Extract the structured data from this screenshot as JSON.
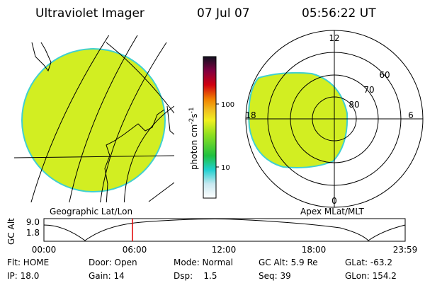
{
  "header": {
    "title": "Ultraviolet Imager",
    "date": "07 Jul 07",
    "time": "05:56:22 UT"
  },
  "geographic_panel": {
    "label": "Geographic Lat/Lon"
  },
  "polar_panel": {
    "label": "Apex MLat/MLT",
    "mlt_labels": [
      "12",
      "18",
      "6",
      "0"
    ],
    "lat_labels": [
      "60",
      "70",
      "80"
    ]
  },
  "colorbar": {
    "unit": [
      "photon cm",
      "-2",
      "s",
      "-1"
    ],
    "tick_labels": [
      "100",
      "10"
    ]
  },
  "altitude_strip": {
    "label": "GC Alt",
    "y_labels": [
      "9.0",
      "1.8"
    ],
    "x_labels": [
      "00:00",
      "06:00",
      "12:00",
      "18:00",
      "23:59"
    ]
  },
  "footer": {
    "rows": [
      [
        "Flt: HOME",
        "Door: Open",
        "Mode: Normal",
        "GC Alt: 5.9 Re",
        "GLat: -63.2"
      ],
      [
        "IP: 18.0",
        "Gain: 14",
        "Dsp:    1.5",
        "Seq: 39",
        "GLon: 154.2"
      ]
    ]
  }
}
